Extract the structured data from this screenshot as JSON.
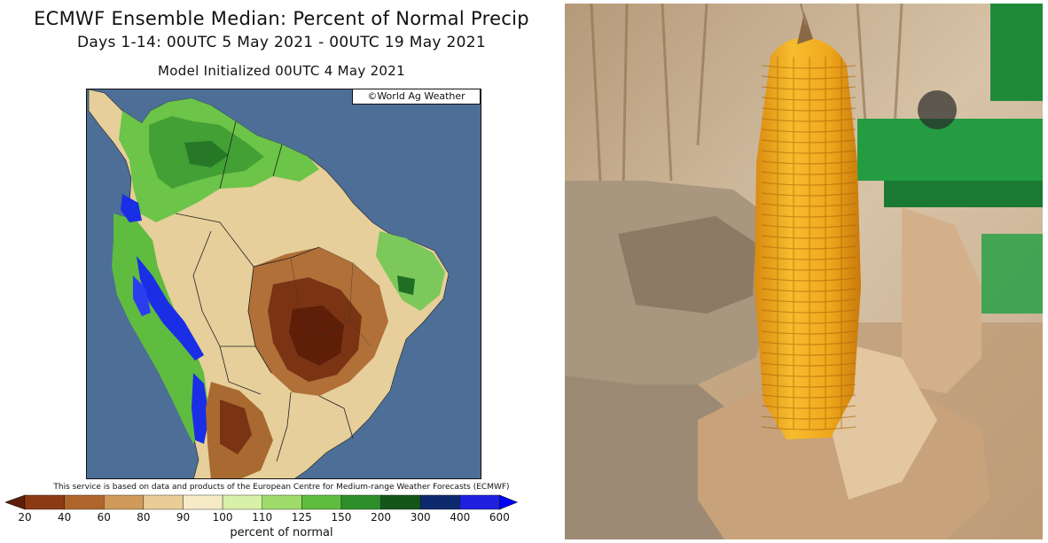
{
  "map": {
    "title": "ECMWF Ensemble Median: Percent of Normal Precip",
    "subtitle": "Days 1-14: 00UTC 5 May 2021 - 00UTC 19 May 2021",
    "initialized": "Model Initialized 00UTC 4 May 2021",
    "credit": "©World Ag Weather",
    "disclaimer": "This service is based on data and products of the European Centre for Medium-range Weather Forecasts (ECMWF)",
    "legend": {
      "title": "percent of normal",
      "ticks": [
        "20",
        "40",
        "60",
        "80",
        "90",
        "100",
        "110",
        "125",
        "150",
        "200",
        "300",
        "400",
        "600"
      ],
      "colors": [
        "#5e1e08",
        "#8b3a14",
        "#b0652c",
        "#cf9a5a",
        "#e9cc96",
        "#f6ebc6",
        "#d8f0a8",
        "#9fdc6c",
        "#5fbc3e",
        "#2e8e2a",
        "#14561a",
        "#0e2a6e",
        "#2020e0",
        "#0000ff"
      ]
    },
    "colors": {
      "ocean": "#4c6e97",
      "very_dry": "#6e2a10",
      "dry": "#a8682e",
      "near_normal": "#e9d09a",
      "wet": "#5fbc3e",
      "very_wet": "#1a2ee6"
    }
  },
  "photo": {
    "subject": "corn-ear-held-in-gloved-hand",
    "colors": {
      "kernel": "#f0a81c",
      "husk": "#c8a27a",
      "glove": "#9c8a74",
      "tractor": "#1f8a3a"
    }
  }
}
